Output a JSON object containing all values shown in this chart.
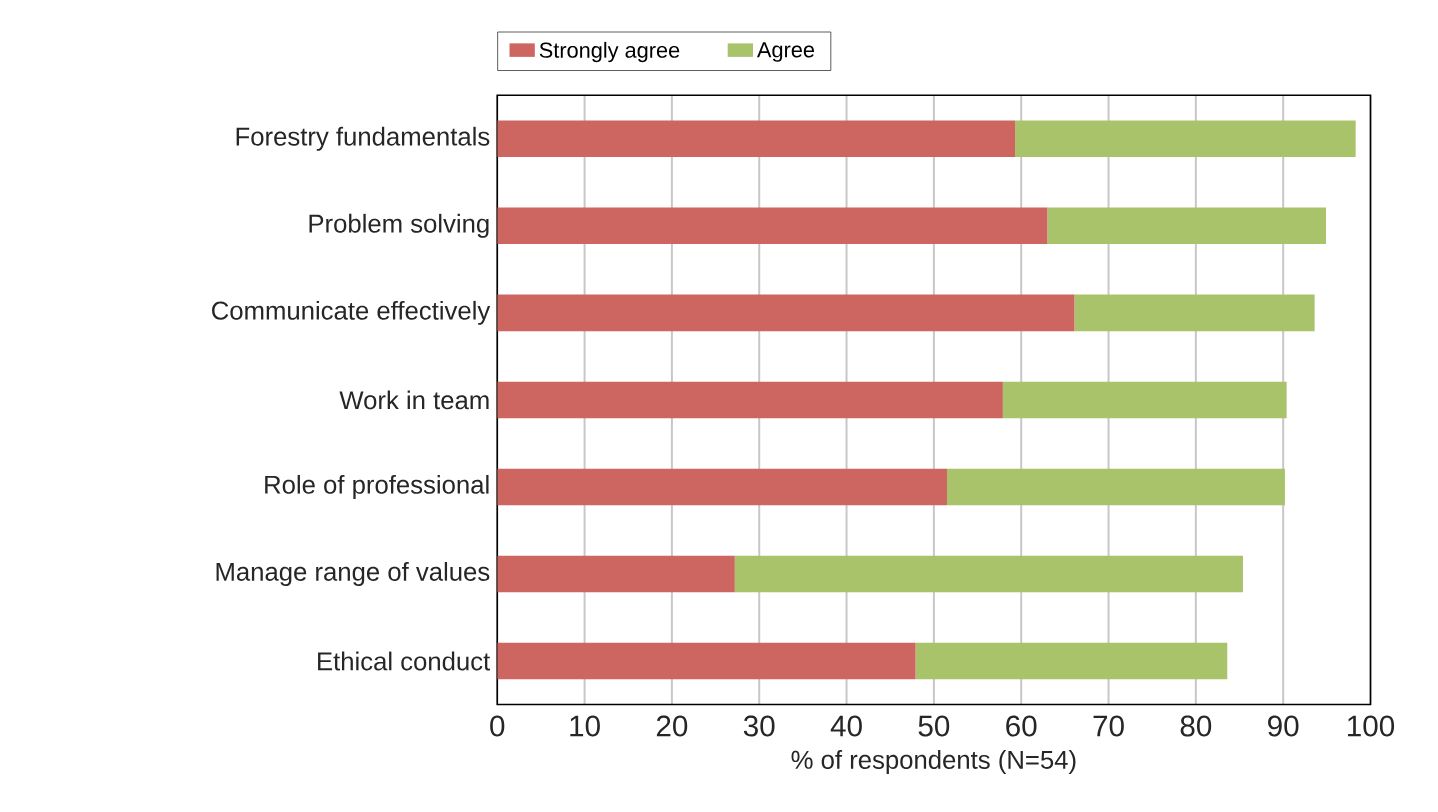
{
  "chart_data": {
    "type": "bar",
    "orientation": "horizontal",
    "stacked": true,
    "categories": [
      "Forestry fundamentals",
      "Problem solving",
      "Communicate effectively",
      "Work in team",
      "Role of professional",
      "Manage range of values",
      "Ethical conduct"
    ],
    "series": [
      {
        "name": "Strongly agree",
        "color": "#cd6660",
        "values": [
          59.3,
          63.0,
          66.1,
          57.9,
          51.5,
          27.2,
          47.9
        ]
      },
      {
        "name": "Agree",
        "color": "#a8c36a",
        "values": [
          39.0,
          31.9,
          27.5,
          32.5,
          38.7,
          58.2,
          35.7
        ]
      }
    ],
    "xlabel": "% of respondents (N=54)",
    "xlim": [
      0,
      100
    ],
    "xticks": [
      0,
      10,
      20,
      30,
      40,
      50,
      60,
      70,
      80,
      90,
      100
    ],
    "grid": "x",
    "legend": "top left"
  }
}
